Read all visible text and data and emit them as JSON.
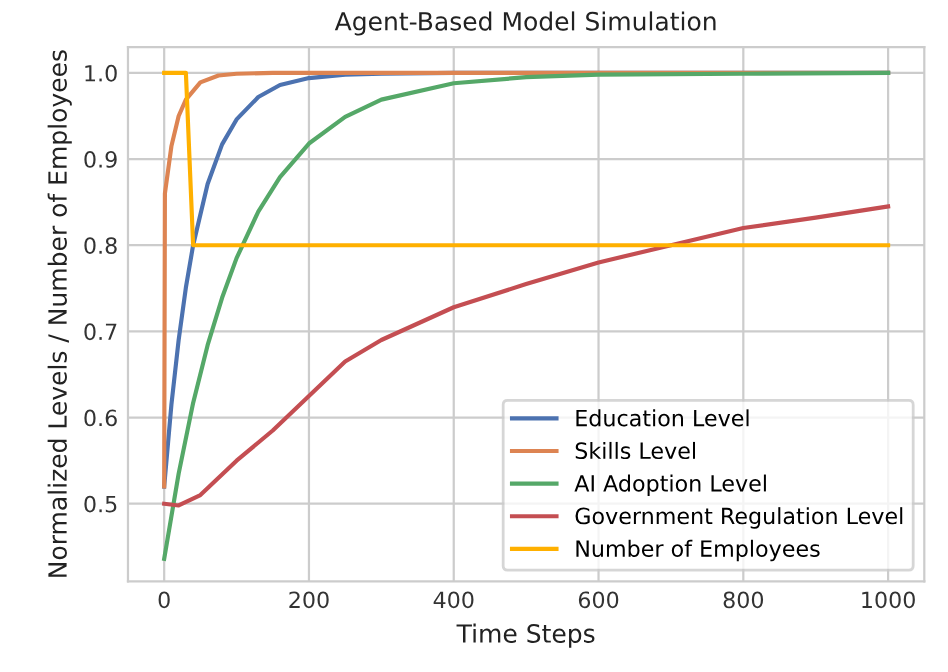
{
  "chart_data": {
    "type": "line",
    "title": "Agent-Based Model Simulation",
    "xlabel": "Time Steps",
    "ylabel": "Normalized Levels / Number of Employees",
    "xlim": [
      -50,
      1050
    ],
    "ylim": [
      0.41,
      1.03
    ],
    "xticks": [
      0,
      200,
      400,
      600,
      800,
      1000
    ],
    "yticks": [
      {
        "value": 0.5,
        "label": "0.5"
      },
      {
        "value": 0.6,
        "label": "0.6"
      },
      {
        "value": 0.7,
        "label": "0.7"
      },
      {
        "value": 0.8,
        "label": "0.8"
      },
      {
        "value": 0.9,
        "label": "0.9"
      },
      {
        "value": 1.0,
        "label": "1.0"
      }
    ],
    "grid": true,
    "legend": "bottom right",
    "series": [
      {
        "name": "Education Level",
        "color": "#4c72b0",
        "x": [
          0,
          10,
          20,
          30,
          40,
          60,
          80,
          100,
          130,
          160,
          200,
          250,
          300,
          400,
          600,
          1000
        ],
        "values": [
          0.52,
          0.615,
          0.69,
          0.751,
          0.8,
          0.871,
          0.917,
          0.946,
          0.972,
          0.986,
          0.994,
          0.998,
          0.999,
          1.0,
          1.0,
          1.0
        ]
      },
      {
        "name": "Skills Level",
        "color": "#dd8452",
        "x": [
          0,
          1,
          10,
          20,
          30,
          50,
          75,
          100,
          150,
          1000
        ],
        "values": [
          0.52,
          0.86,
          0.915,
          0.95,
          0.969,
          0.989,
          0.997,
          0.999,
          1.0,
          1.0
        ]
      },
      {
        "name": "AI Adoption Level",
        "color": "#55a868",
        "x": [
          0,
          20,
          40,
          60,
          80,
          100,
          130,
          160,
          200,
          250,
          300,
          400,
          500,
          600,
          800,
          1000
        ],
        "values": [
          0.436,
          0.535,
          0.617,
          0.684,
          0.739,
          0.785,
          0.839,
          0.879,
          0.918,
          0.949,
          0.969,
          0.988,
          0.995,
          0.998,
          0.999,
          1.0
        ]
      },
      {
        "name": "Government Regulation Level",
        "color": "#c44e52",
        "x": [
          0,
          20,
          50,
          100,
          150,
          200,
          250,
          300,
          400,
          500,
          600,
          700,
          800,
          900,
          1000
        ],
        "values": [
          0.5,
          0.498,
          0.51,
          0.55,
          0.585,
          0.625,
          0.665,
          0.69,
          0.728,
          0.755,
          0.78,
          0.8,
          0.82,
          0.832,
          0.845
        ]
      },
      {
        "name": "Number of Employees",
        "color": "#ffb000",
        "x": [
          0,
          30,
          40,
          1000
        ],
        "values": [
          1.0,
          1.0,
          0.8,
          0.8
        ]
      }
    ]
  }
}
